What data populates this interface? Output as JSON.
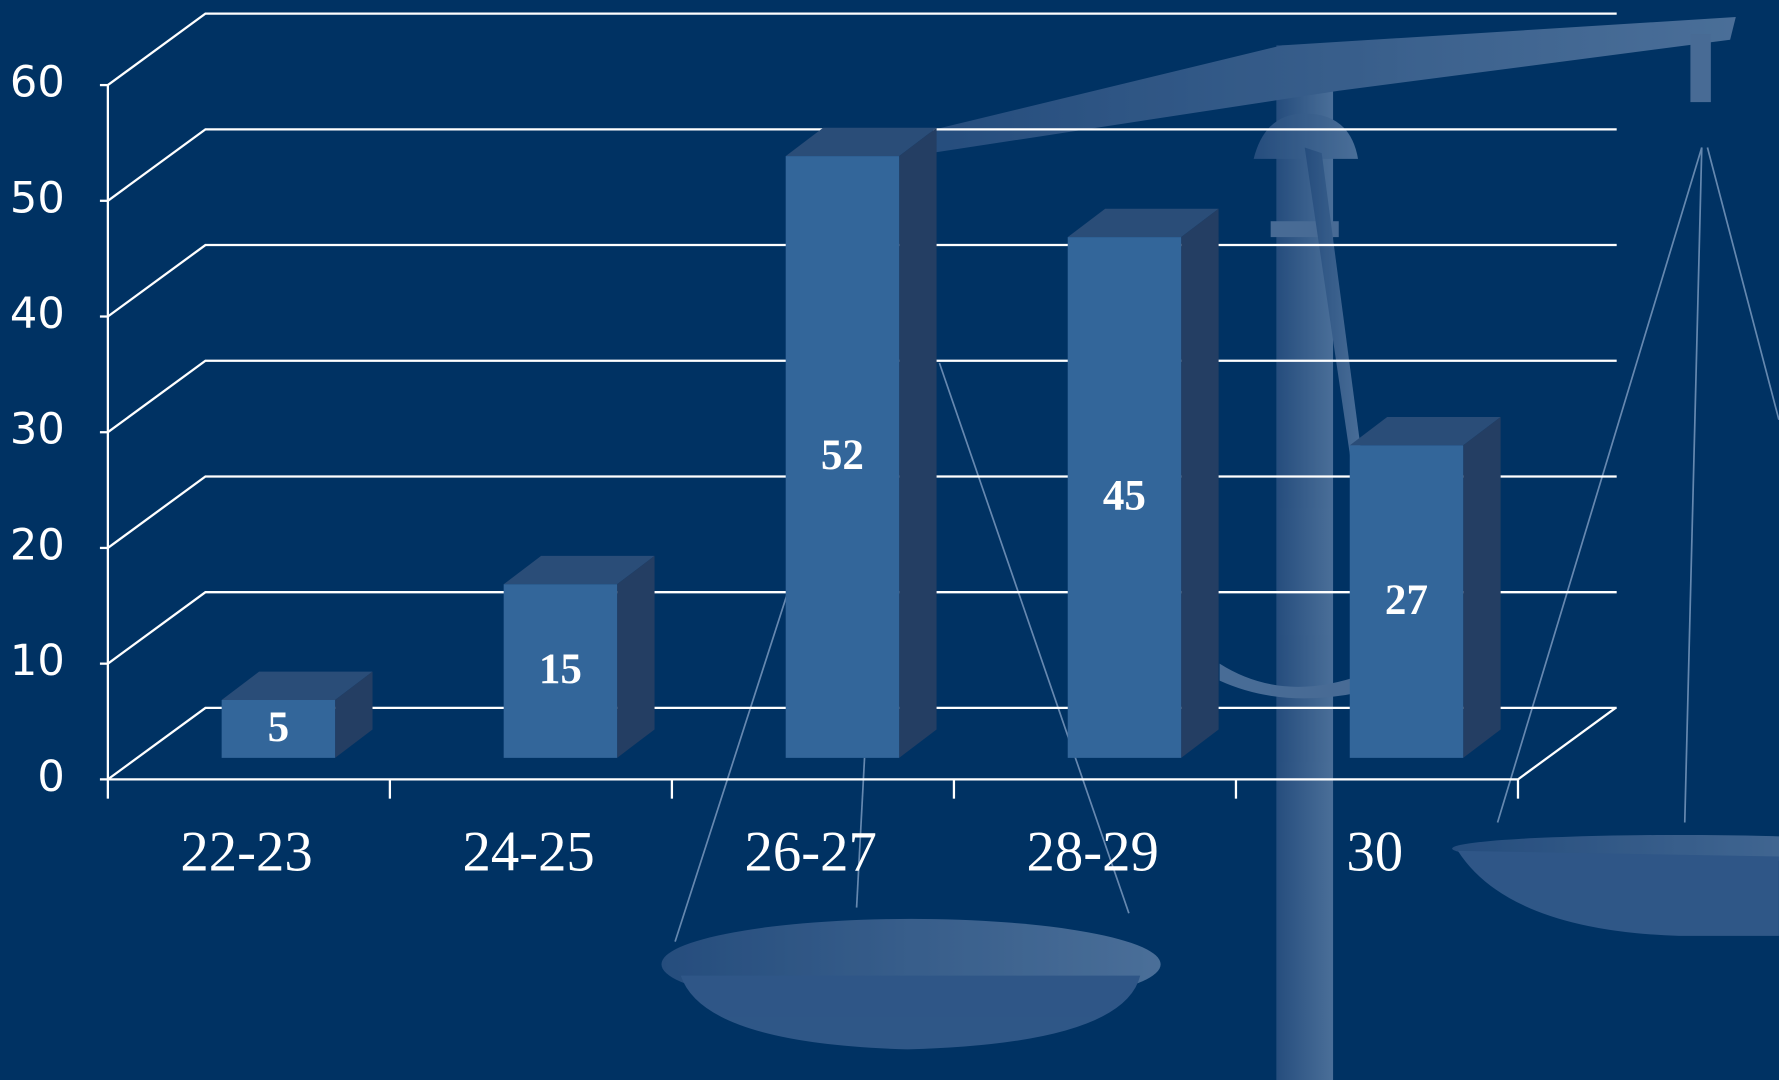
{
  "chart_data": {
    "type": "bar",
    "categories": [
      "22-23",
      "24-25",
      "26-27",
      "28-29",
      "30"
    ],
    "values": [
      5,
      15,
      52,
      45,
      27
    ],
    "color": "#33669a",
    "ylim": [
      0,
      60
    ],
    "yticks": [
      0,
      10,
      20,
      30,
      40,
      50,
      60
    ],
    "grid": true
  }
}
